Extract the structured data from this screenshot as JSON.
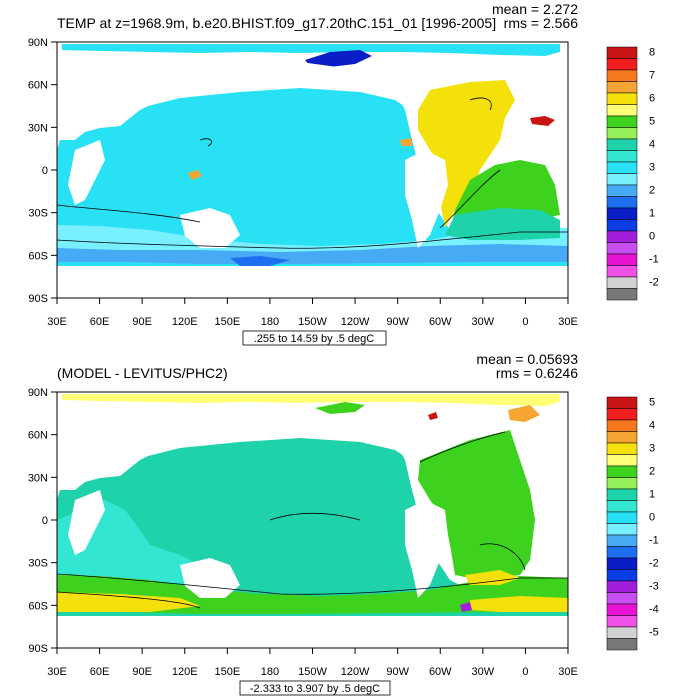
{
  "panels": [
    {
      "title": "TEMP at z=1968.9m, b.e20.BHIST.f09_g17.20thC.151_01 [1996-2005]",
      "stats": {
        "mean": "mean = 2.272",
        "rms": "rms = 2.566"
      },
      "range_label": ".255 to 14.59 by .5 degC",
      "lat_ticks": [
        "90N",
        "60N",
        "30N",
        "0",
        "30S",
        "60S",
        "90S"
      ],
      "lon_ticks": [
        "30E",
        "60E",
        "90E",
        "120E",
        "150E",
        "180",
        "150W",
        "120W",
        "90W",
        "60W",
        "30W",
        "0",
        "30E"
      ],
      "colorbar": {
        "labels": [
          "8",
          "7",
          "6",
          "5",
          "4",
          "3",
          "2",
          "1",
          "0",
          "-1",
          "-2"
        ],
        "colors": [
          "#C81414",
          "#F01E1E",
          "#F5781E",
          "#F5A532",
          "#F5E10A",
          "#FFFF78",
          "#3CD21E",
          "#96F05A",
          "#1ED2AA",
          "#32E6D2",
          "#28E1F5",
          "#78F0FF",
          "#46AAF5",
          "#1E6EF0",
          "#0A1EC8",
          "#0A3CE6",
          "#A01EDC",
          "#C850F0",
          "#E614D2",
          "#F050E6",
          "#D2D2D2",
          "#787878"
        ]
      }
    },
    {
      "title": "(MODEL - LEVITUS/PHC2)",
      "stats": {
        "mean": "mean = 0.05693",
        "rms": "rms = 0.6246"
      },
      "range_label": "-2.333 to 3.907 by .5 degC",
      "lat_ticks": [
        "90N",
        "60N",
        "30N",
        "0",
        "30S",
        "60S",
        "90S"
      ],
      "lon_ticks": [
        "30E",
        "60E",
        "90E",
        "120E",
        "150E",
        "180",
        "150W",
        "120W",
        "90W",
        "60W",
        "30W",
        "0",
        "30E"
      ],
      "colorbar": {
        "labels": [
          "5",
          "4",
          "3",
          "2",
          "1",
          "0",
          "-1",
          "-2",
          "-3",
          "-4",
          "-5"
        ],
        "colors": [
          "#C81414",
          "#F01E1E",
          "#F5781E",
          "#F5A532",
          "#F5E10A",
          "#FFFF78",
          "#3CD21E",
          "#96F05A",
          "#1ED2AA",
          "#32E6D2",
          "#28E1F5",
          "#78F0FF",
          "#46AAF5",
          "#1E6EF0",
          "#0A1EC8",
          "#0A3CE6",
          "#A01EDC",
          "#C850F0",
          "#E614D2",
          "#F050E6",
          "#D2D2D2",
          "#787878"
        ]
      }
    }
  ]
}
